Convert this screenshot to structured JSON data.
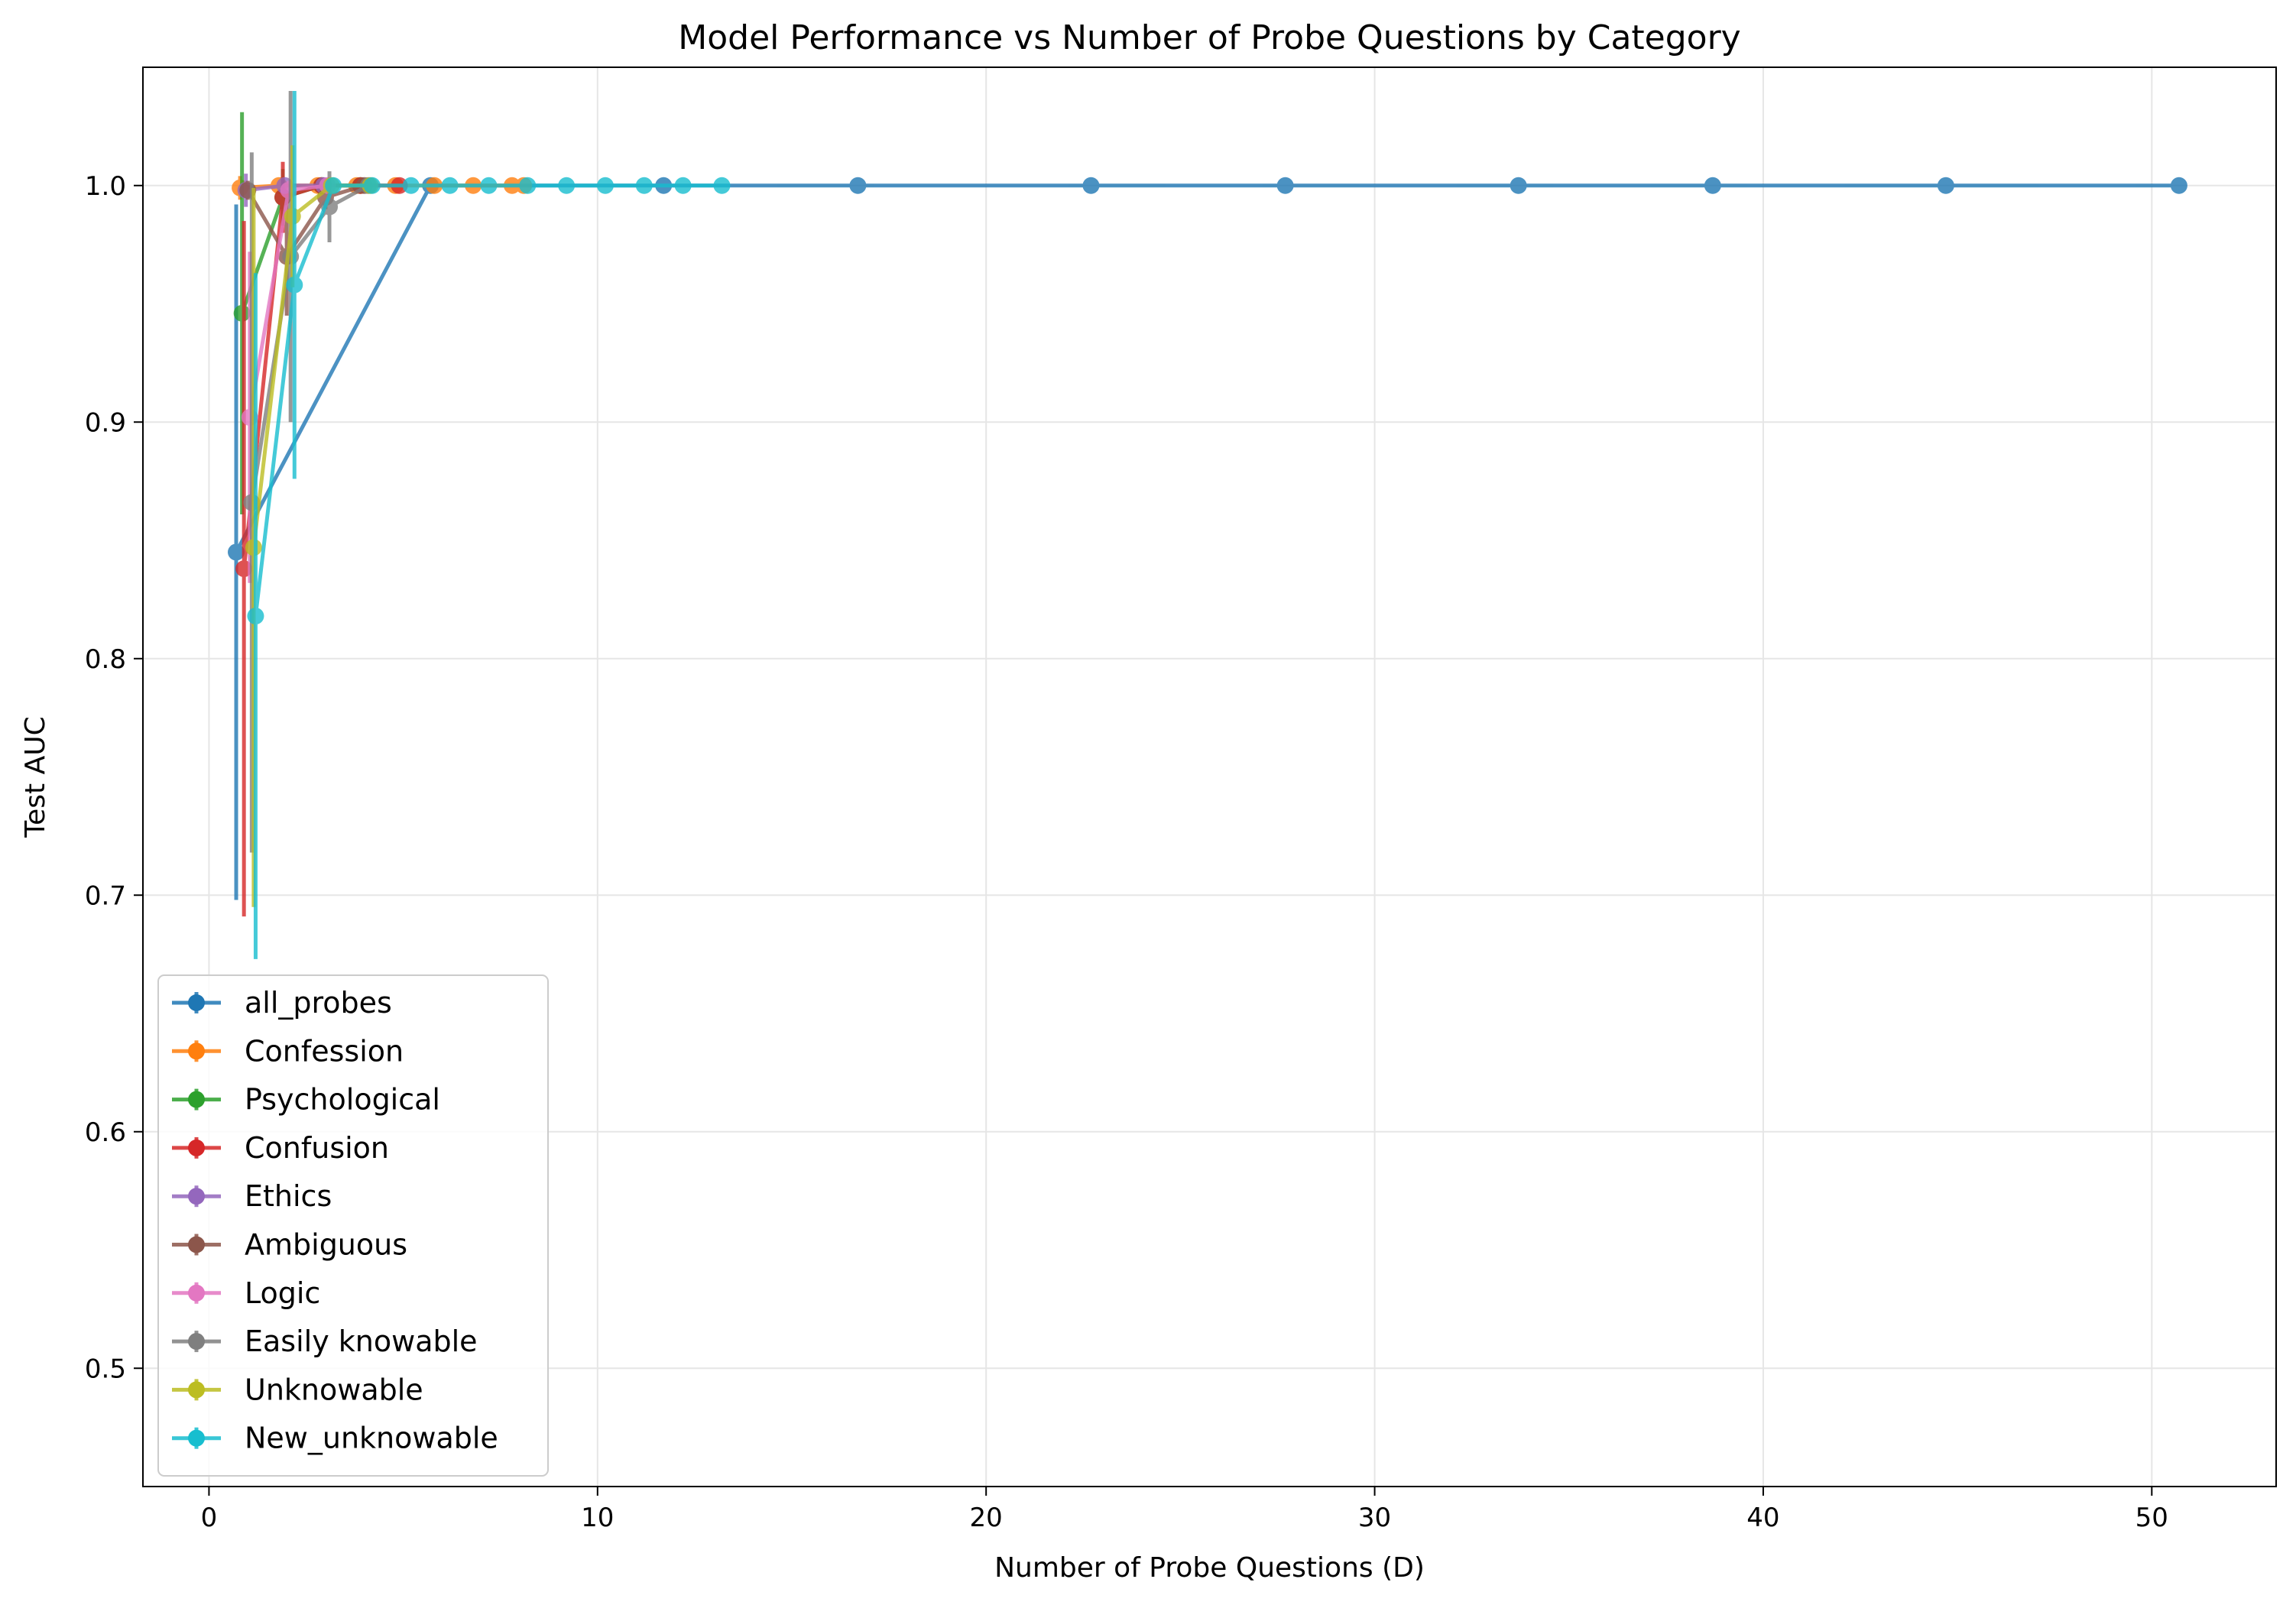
{
  "chart_data": {
    "type": "line",
    "title": "Model Performance vs Number of Probe Questions by Category",
    "xlabel": "Number of Probe Questions (D)",
    "ylabel": "Test AUC",
    "xlim": [
      -1.7,
      53.2
    ],
    "ylim": [
      0.45,
      1.05
    ],
    "xticks": [
      0,
      10,
      20,
      30,
      40,
      50
    ],
    "yticks": [
      0.5,
      0.6,
      0.7,
      0.8,
      0.9,
      1.0
    ],
    "xtick_labels": [
      "0",
      "10",
      "20",
      "30",
      "40",
      "50"
    ],
    "ytick_labels": [
      "0.5",
      "0.6",
      "0.7",
      "0.8",
      "0.9",
      "1.0"
    ],
    "grid": true,
    "legend_position": "lower-left",
    "series": [
      {
        "name": "all_probes",
        "color": "#1f77b4",
        "x": [
          0.7,
          5.7,
          11.7,
          16.7,
          22.7,
          27.7,
          33.7,
          38.7,
          44.7,
          50.7
        ],
        "y": [
          0.845,
          1.0,
          1.0,
          1.0,
          1.0,
          1.0,
          1.0,
          1.0,
          1.0,
          1.0
        ],
        "err": [
          0.147,
          0,
          0,
          0,
          0,
          0,
          0,
          0,
          0,
          0
        ]
      },
      {
        "name": "Confession",
        "color": "#ff7f0e",
        "x": [
          0.8,
          1.8,
          2.8,
          3.8,
          4.8,
          5.8,
          6.8,
          7.8,
          8.1
        ],
        "y": [
          0.999,
          1.0,
          1.0,
          1.0,
          1.0,
          1.0,
          1.0,
          1.0,
          1.0
        ],
        "err": [
          0.005,
          0,
          0,
          0,
          0,
          0,
          0,
          0,
          0
        ]
      },
      {
        "name": "Psychological",
        "color": "#2ca02c",
        "x": [
          0.85,
          1.9,
          2.9,
          3.9
        ],
        "y": [
          0.946,
          0.995,
          1.0,
          1.0
        ],
        "err": [
          0.085,
          0.012,
          0,
          0
        ]
      },
      {
        "name": "Confusion",
        "color": "#d62728",
        "x": [
          0.9,
          1.9,
          2.9,
          3.9,
          4.9
        ],
        "y": [
          0.838,
          0.995,
          1.0,
          1.0,
          1.0
        ],
        "err": [
          0.147,
          0.015,
          0,
          0,
          0
        ]
      },
      {
        "name": "Ethics",
        "color": "#9467bd",
        "x": [
          0.95,
          1.95,
          2.95
        ],
        "y": [
          0.998,
          1.0,
          1.0
        ],
        "err": [
          0.007,
          0,
          0
        ]
      },
      {
        "name": "Ambiguous",
        "color": "#8c564b",
        "x": [
          1.0,
          2.0,
          3.0,
          4.0
        ],
        "y": [
          0.998,
          0.97,
          0.995,
          1.0
        ],
        "err": [
          0.004,
          0.025,
          0.005,
          0
        ]
      },
      {
        "name": "Logic",
        "color": "#e377c2",
        "x": [
          1.05,
          2.05,
          3.05
        ],
        "y": [
          0.902,
          0.998,
          1.0
        ],
        "err": [
          0.07,
          0.004,
          0
        ]
      },
      {
        "name": "Easily knowable",
        "color": "#7f7f7f",
        "x": [
          1.1,
          2.1,
          3.1,
          4.1
        ],
        "y": [
          0.866,
          0.97,
          0.991,
          1.0
        ],
        "err": [
          0.148,
          0.07,
          0.015,
          0
        ]
      },
      {
        "name": "Unknowable",
        "color": "#bcbd22",
        "x": [
          1.15,
          2.15,
          3.15,
          4.15
        ],
        "y": [
          0.847,
          0.987,
          1.0,
          1.0
        ],
        "err": [
          0.152,
          0.03,
          0,
          0
        ]
      },
      {
        "name": "New_unknowable",
        "color": "#17becf",
        "x": [
          1.2,
          2.2,
          3.2,
          4.2,
          5.2,
          6.2,
          7.2,
          8.2,
          9.2,
          10.2,
          11.2,
          12.2,
          13.2
        ],
        "y": [
          0.818,
          0.958,
          1.0,
          1.0,
          1.0,
          1.0,
          1.0,
          1.0,
          1.0,
          1.0,
          1.0,
          1.0,
          1.0
        ],
        "err": [
          0.145,
          0.082,
          0,
          0,
          0,
          0,
          0,
          0,
          0,
          0,
          0,
          0,
          0
        ]
      }
    ]
  }
}
